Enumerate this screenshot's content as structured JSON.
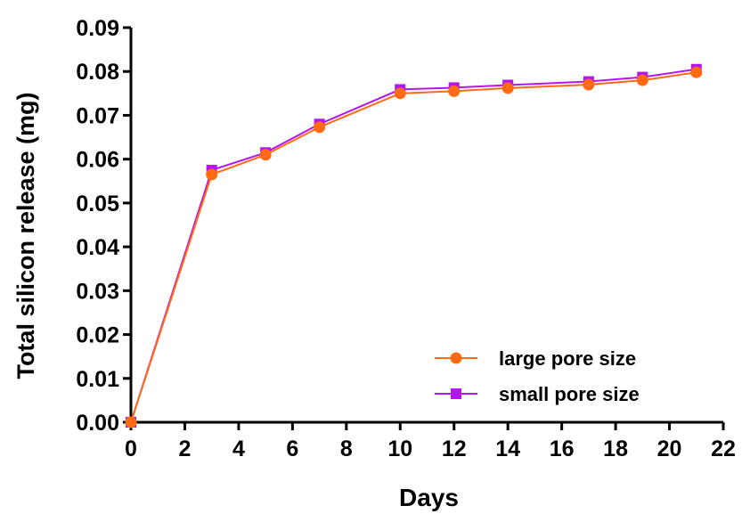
{
  "chart_data": {
    "type": "line",
    "xlabel": "Days",
    "ylabel": "Total silicon release (mg)",
    "xlim": [
      0,
      22
    ],
    "ylim": [
      0,
      0.09
    ],
    "xticks": [
      "0",
      "2",
      "4",
      "6",
      "8",
      "10",
      "12",
      "14",
      "16",
      "18",
      "20",
      "22"
    ],
    "yticks": [
      "0.00",
      "0.01",
      "0.02",
      "0.03",
      "0.04",
      "0.05",
      "0.06",
      "0.07",
      "0.08",
      "0.09"
    ],
    "grid": false,
    "legend_position": "bottom-right",
    "series": [
      {
        "name": "large pore size",
        "color": "#ff6a13",
        "marker": "circle",
        "x": [
          0,
          3,
          5,
          7,
          10,
          12,
          14,
          17,
          19,
          21
        ],
        "values": [
          0.0,
          0.0565,
          0.061,
          0.0673,
          0.075,
          0.0755,
          0.0762,
          0.077,
          0.078,
          0.0798
        ]
      },
      {
        "name": "small pore size",
        "color": "#b515ee",
        "marker": "square",
        "x": [
          0,
          3,
          5,
          7,
          10,
          12,
          14,
          17,
          19,
          21
        ],
        "values": [
          0.0,
          0.0575,
          0.0615,
          0.068,
          0.0759,
          0.0763,
          0.0769,
          0.0777,
          0.0787,
          0.0805
        ]
      }
    ]
  }
}
